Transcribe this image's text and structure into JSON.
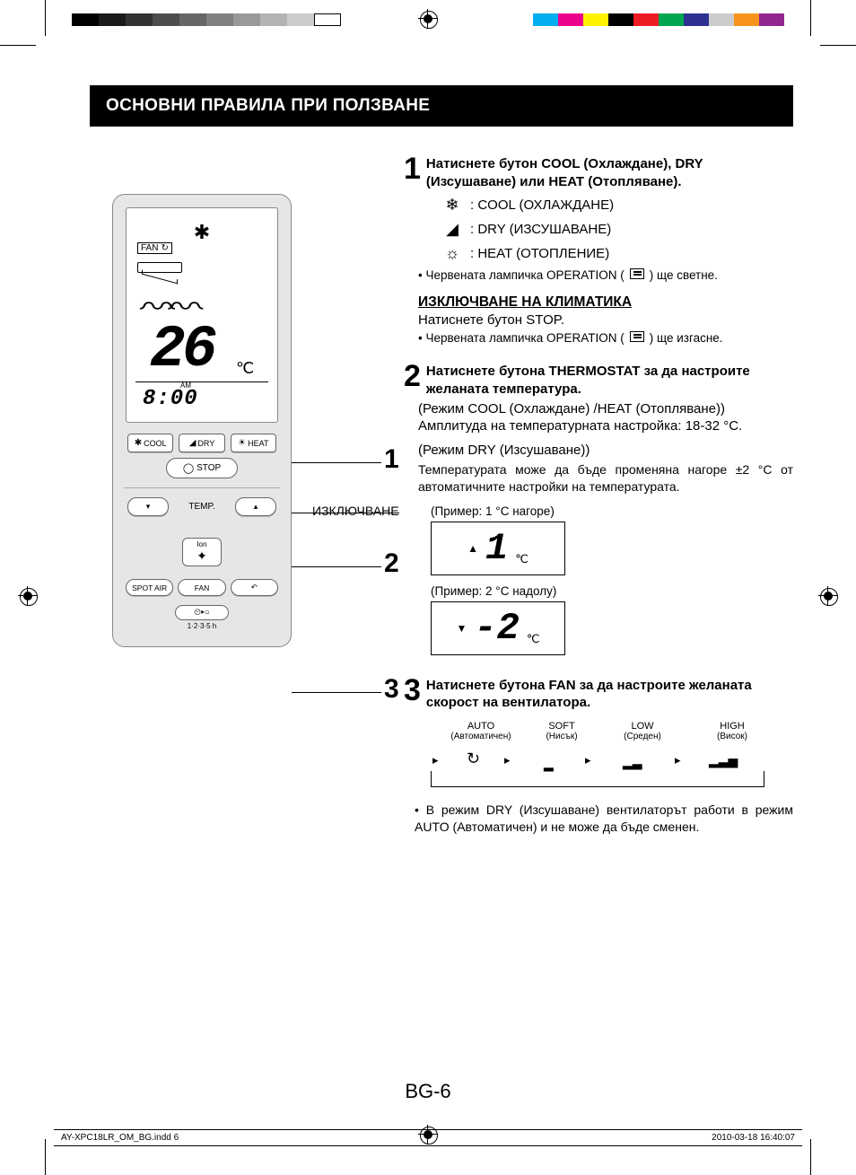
{
  "print": {
    "gray_swatches": [
      "#000000",
      "#1a1a1a",
      "#333333",
      "#4d4d4d",
      "#666666",
      "#808080",
      "#999999",
      "#b3b3b3",
      "#cccccc",
      "#ffffff"
    ],
    "color_swatches": [
      "#00aeef",
      "#ec008c",
      "#fff200",
      "#000000",
      "#ed1c24",
      "#00a651",
      "#2e3192",
      "#cccccc",
      "#f7941d",
      "#92278f"
    ]
  },
  "header": {
    "title": "ОСНОВНИ ПРАВИЛА ПРИ ПОЛЗВАНЕ"
  },
  "remote": {
    "lcd": {
      "fan_badge": "FAN",
      "temp": "26",
      "temp_unit": "℃",
      "ampm": "AM",
      "clock": "8:00"
    },
    "buttons": {
      "cool": "COOL",
      "dry": "DRY",
      "heat": "HEAT",
      "stop": "STOP",
      "temp_label": "TEMP.",
      "ion_top": "Ion",
      "spot_air": "SPOT AIR",
      "fan": "FAN",
      "timer_icons": "⏲▸○",
      "timer_label": "1·2·3·5 h"
    }
  },
  "callouts": {
    "n1": "1",
    "n2": "2",
    "n3": "3",
    "off_label": "ИЗКЛЮЧВАНЕ"
  },
  "step1": {
    "num": "1",
    "title": "Натиснете бутон COOL (Охлаждане), DRY (Изсушаване) или HEAT (Отопляване).",
    "cool": ": COOL (ОХЛАЖДАНЕ)",
    "dry": ": DRY (ИЗСУШАВАНЕ)",
    "heat": ": HEAT (ОТОПЛЕНИЕ)",
    "bullet_pre": "• Червената лампичка OPERATION (",
    "bullet_post": ") ще светне.",
    "off_heading": "ИЗКЛЮЧВАНЕ НА КЛИМАТИКА",
    "off_text": "Натиснете бутон STOP.",
    "off_bullet_pre": "• Червената лампичка OPERATION (",
    "off_bullet_post": ") ще изгасне."
  },
  "step2": {
    "num": "2",
    "title": "Натиснете бутона THERMOSTAT за да настроите желаната температура.",
    "line1": "(Режим COOL (Охлаждане) /HEAT (Отопляване))",
    "line2": "Амплитуда на температурната настройка: 18-32 °C.",
    "line3": "(Режим DRY (Изсушаване))",
    "para": "Температурата може да бъде променяна нагоре ±2 °C от автоматичните настройки на температурата.",
    "ex1_label": "(Пример: 1 °C нагоре)",
    "ex1_value": "1",
    "ex2_label": "(Пример: 2 °C надолу)",
    "ex2_value": "-2",
    "cels": "℃"
  },
  "step3": {
    "num": "3",
    "title": "Натиснете бутона FAN за да настроите желаната скорост на вентилатора.",
    "modes": [
      {
        "top": "AUTO",
        "sub": "(Автоматичен)"
      },
      {
        "top": "SOFT",
        "sub": "(Нисък)"
      },
      {
        "top": "LOW",
        "sub": "(Среден)"
      },
      {
        "top": "HIGH",
        "sub": "(Висок)"
      }
    ],
    "bullet": "• В режим DRY (Изсушаване) вентилаторът работи в режим AUTO (Автоматичен) и не може да бъде сменен."
  },
  "page_number": "BG-6",
  "footer": {
    "left": "AY-XPC18LR_OM_BG.indd   6",
    "right": "2010-03-18   16:40:07"
  }
}
